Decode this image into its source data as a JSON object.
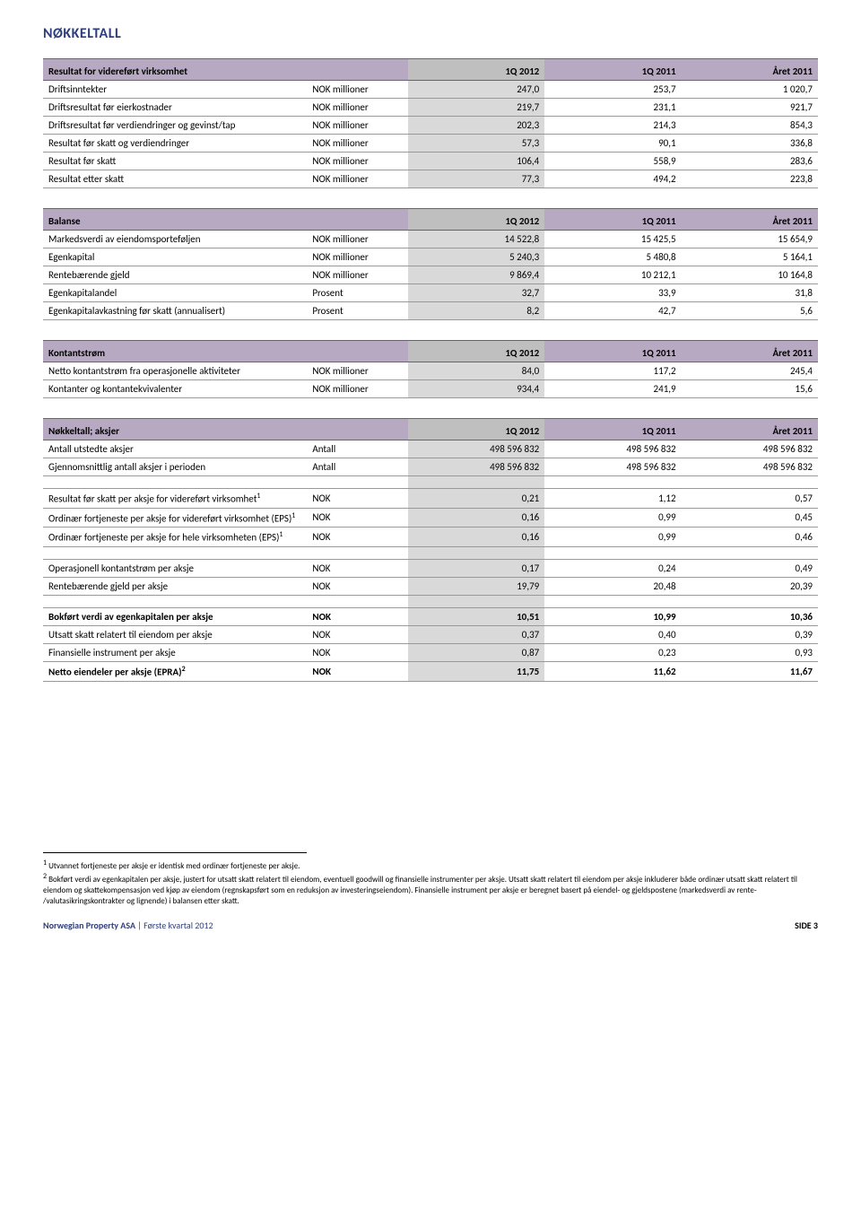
{
  "pageTitle": "NØKKELTALL",
  "tables": [
    {
      "header": [
        "Resultat for videreført virksomhet",
        "",
        "1Q 2012",
        "1Q 2011",
        "Året 2011"
      ],
      "rows": [
        [
          "Driftsinntekter",
          "NOK millioner",
          "247,0",
          "253,7",
          "1 020,7"
        ],
        [
          "Driftsresultat før eierkostnader",
          "NOK millioner",
          "219,7",
          "231,1",
          "921,7"
        ],
        [
          "Driftsresultat før verdiendringer og gevinst/tap",
          "NOK millioner",
          "202,3",
          "214,3",
          "854,3"
        ],
        [
          "Resultat før skatt og verdiendringer",
          "NOK millioner",
          "57,3",
          "90,1",
          "336,8"
        ],
        [
          "Resultat før skatt",
          "NOK millioner",
          "106,4",
          "558,9",
          "283,6"
        ],
        [
          "Resultat etter skatt",
          "NOK millioner",
          "77,3",
          "494,2",
          "223,8"
        ]
      ]
    },
    {
      "header": [
        "Balanse",
        "",
        "1Q 2012",
        "1Q 2011",
        "Året 2011"
      ],
      "rows": [
        [
          "Markedsverdi av eiendomsporteføljen",
          "NOK millioner",
          "14 522,8",
          "15 425,5",
          "15 654,9"
        ],
        [
          "Egenkapital",
          "NOK millioner",
          "5 240,3",
          "5 480,8",
          "5 164,1"
        ],
        [
          "Rentebærende gjeld",
          "NOK millioner",
          "9 869,4",
          "10 212,1",
          "10 164,8"
        ],
        [
          "Egenkapitalandel",
          "Prosent",
          "32,7",
          "33,9",
          "31,8"
        ],
        [
          "Egenkapitalavkastning før skatt (annualisert)",
          "Prosent",
          "8,2",
          "42,7",
          "5,6"
        ]
      ]
    },
    {
      "header": [
        "Kontantstrøm",
        "",
        "1Q 2012",
        "1Q 2011",
        "Året 2011"
      ],
      "rows": [
        [
          "Netto kontantstrøm fra operasjonelle aktiviteter",
          "NOK millioner",
          "84,0",
          "117,2",
          "245,4"
        ],
        [
          "Kontanter og kontantekvivalenter",
          "NOK millioner",
          "934,4",
          "241,9",
          "15,6"
        ]
      ]
    }
  ],
  "table4": {
    "header": [
      "Nøkkeltall; aksjer",
      "",
      "1Q 2012",
      "1Q 2011",
      "Året 2011"
    ],
    "section1": [
      [
        "Antall utstedte aksjer",
        "Antall",
        "498 596 832",
        "498 596 832",
        "498 596 832"
      ],
      [
        "Gjennomsnittlig antall aksjer i perioden",
        "Antall",
        "498 596 832",
        "498 596 832",
        "498 596 832"
      ]
    ],
    "section2": [
      {
        "label": "Resultat før skatt per aksje for videreført virksomhet",
        "sup": "1",
        "unit": "NOK",
        "v": [
          "0,21",
          "1,12",
          "0,57"
        ]
      },
      {
        "label": "Ordinær fortjeneste per aksje for videreført virksomhet (EPS)",
        "sup": "1",
        "unit": "NOK",
        "v": [
          "0,16",
          "0,99",
          "0,45"
        ]
      },
      {
        "label": "Ordinær fortjeneste per aksje for hele virksomheten (EPS)",
        "sup": "1",
        "unit": "NOK",
        "v": [
          "0,16",
          "0,99",
          "0,46"
        ]
      }
    ],
    "section3": [
      [
        "Operasjonell kontantstrøm per aksje",
        "NOK",
        "0,17",
        "0,24",
        "0,49"
      ],
      [
        "Rentebærende gjeld per aksje",
        "NOK",
        "19,79",
        "20,48",
        "20,39"
      ]
    ],
    "section4": [
      {
        "label": "Bokført verdi av egenkapitalen per aksje",
        "unit": "NOK",
        "v": [
          "10,51",
          "10,99",
          "10,36"
        ],
        "bold": true
      },
      {
        "label": "Utsatt skatt relatert til eiendom per aksje",
        "unit": "NOK",
        "v": [
          "0,37",
          "0,40",
          "0,39"
        ]
      },
      {
        "label": "Finansielle instrument per aksje",
        "unit": "NOK",
        "v": [
          "0,87",
          "0,23",
          "0,93"
        ]
      }
    ],
    "section5": [
      {
        "label": "Netto eiendeler per aksje (EPRA)",
        "sup": "2",
        "unit": "NOK",
        "v": [
          "11,75",
          "11,62",
          "11,67"
        ],
        "bold": true
      }
    ]
  },
  "footnotes": {
    "n1": "Utvannet fortjeneste per aksje er identisk med ordinær fortjeneste per aksje.",
    "n2": "Bokført verdi av egenkapitalen per aksje, justert for utsatt skatt relatert til eiendom, eventuell goodwill og finansielle instrumenter per aksje. Utsatt skatt relatert til eiendom per aksje inkluderer både ordinær utsatt skatt relatert til eiendom og skattekompensasjon ved kjøp av eiendom (regnskapsført som en reduksjon av investeringseiendom). Finansielle instrument per aksje er beregnet basert på eiendel- og gjeldspostene (markedsverdi av rente- /valutasikringskontrakter og lignende) i balansen etter skatt."
  },
  "footer": {
    "company": "Norwegian Property ASA",
    "sep": " | ",
    "period": "Første kvartal 2012",
    "page": "SIDE 3"
  }
}
